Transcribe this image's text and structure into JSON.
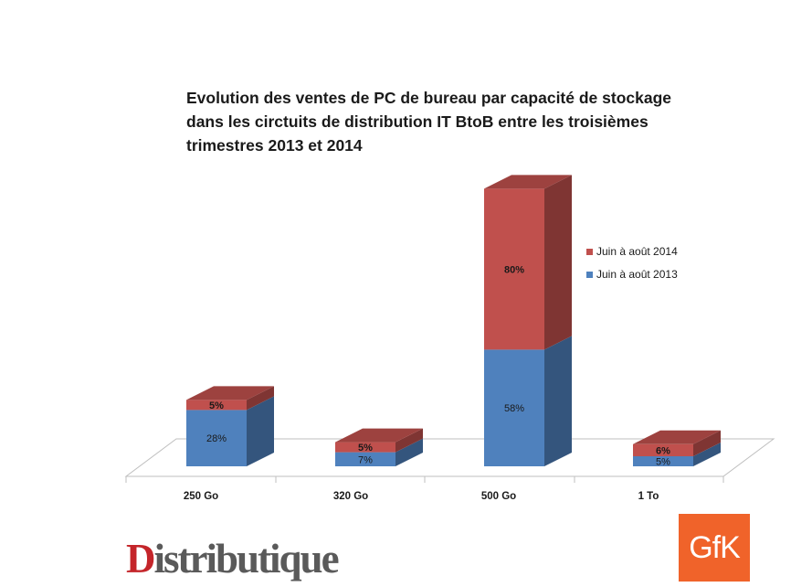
{
  "chart_data": {
    "type": "bar",
    "stacked": true,
    "three_d": true,
    "title": [
      "Evolution des ventes de PC de bureau par capacité de stockage",
      "dans les circtuits de distribution IT BtoB entre les troisièmes",
      "trimestres 2013 et 2014"
    ],
    "categories": [
      "250 Go",
      "320 Go",
      "500 Go",
      "1 To"
    ],
    "series": [
      {
        "name": "Juin à août 2013",
        "color": "#4f81bd",
        "values": [
          28,
          7,
          58,
          5
        ],
        "labels": [
          "28%",
          "7%",
          "58%",
          "5%"
        ]
      },
      {
        "name": "Juin à août 2014",
        "color": "#c0504d",
        "values": [
          5,
          5,
          80,
          6
        ],
        "labels": [
          "5%",
          "5%",
          "80%",
          "6%"
        ]
      }
    ],
    "legend_position": "right",
    "gridlines": false
  },
  "logos": {
    "distributique": {
      "first": "D",
      "rest": "istributique"
    },
    "gfk": "GfK"
  }
}
